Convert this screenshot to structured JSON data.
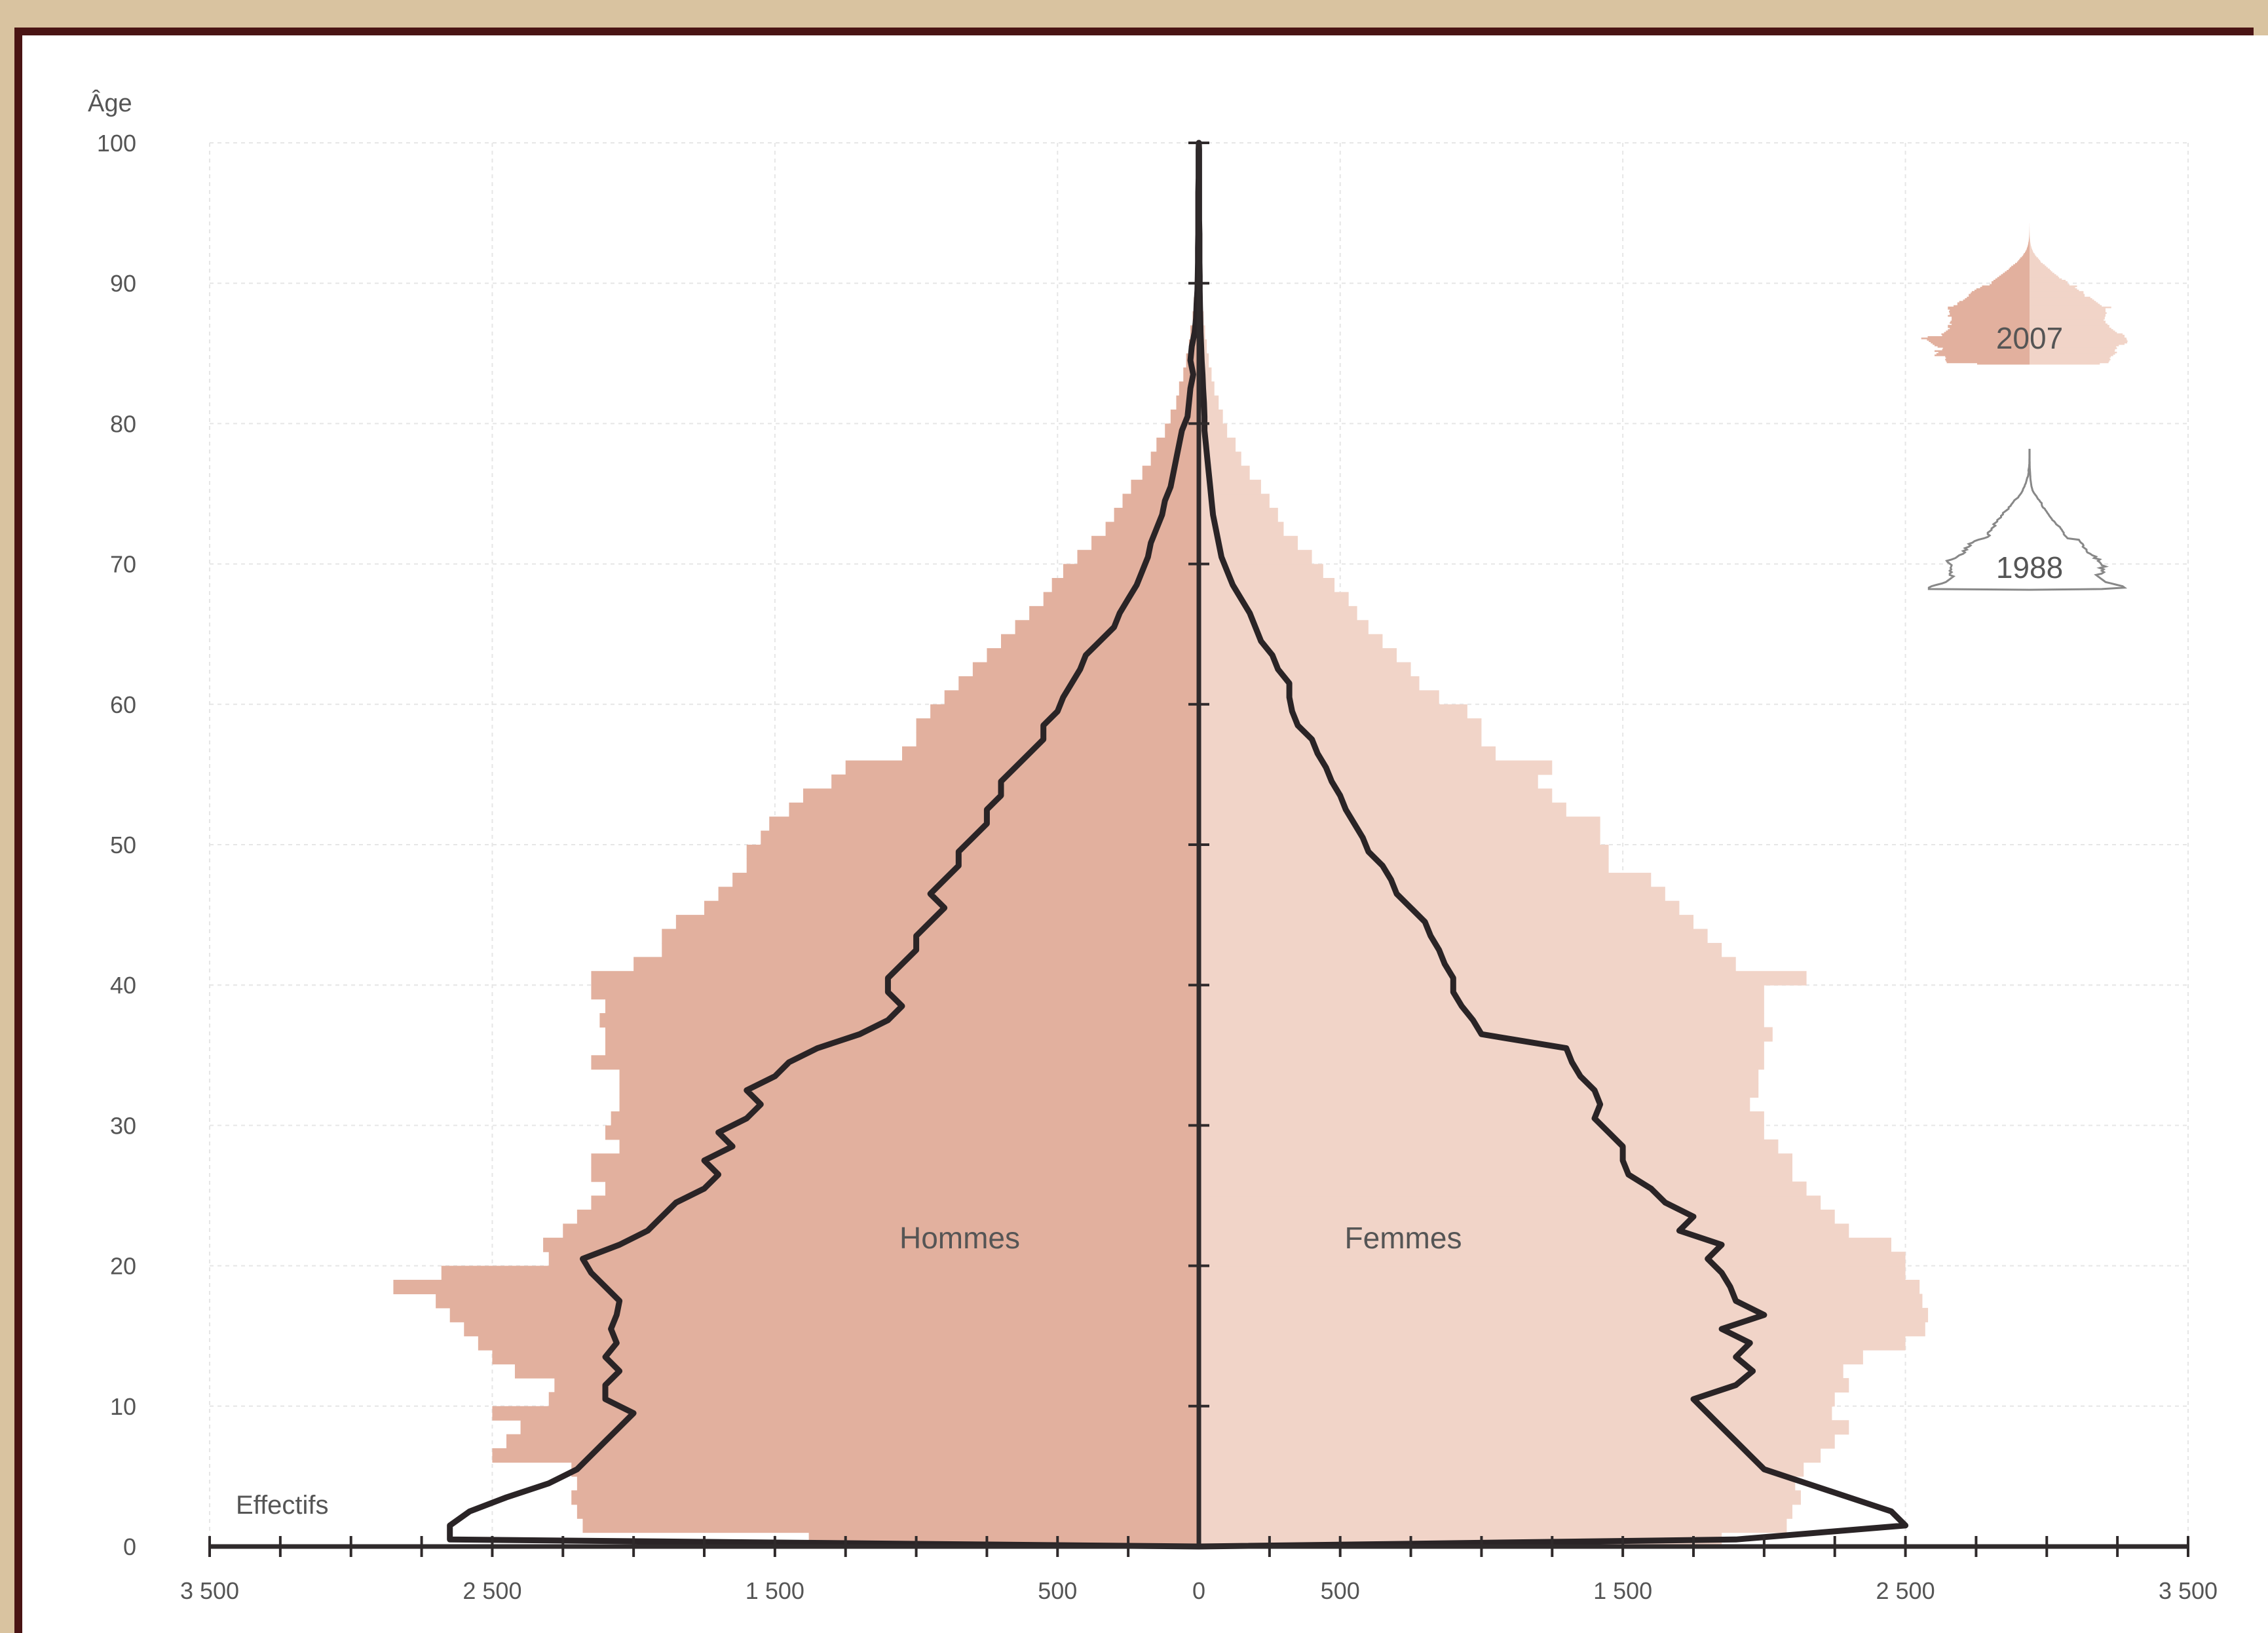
{
  "colors": {
    "men_fill": "#e2b09e",
    "women_fill": "#f1d4c8",
    "outline_1988": "#2a2426",
    "axis": "#2f2a2b",
    "grid": "#e6e6e6",
    "text": "#555555",
    "frame_bg": "#d9c3a0",
    "frame_border": "#4a1414"
  },
  "chart_data": {
    "type": "population-pyramid",
    "ylabel": "Âge",
    "xlabel": "Effectifs",
    "xlim": [
      -3500,
      3500
    ],
    "ylim": [
      0,
      100
    ],
    "x_ticks": [
      -3500,
      -2500,
      -1500,
      -500,
      0,
      500,
      1500,
      2500,
      3500
    ],
    "x_tick_labels": [
      "3 500",
      "2 500",
      "1 500",
      "500",
      "0",
      "500",
      "1 500",
      "2 500",
      "3 500"
    ],
    "y_ticks": [
      0,
      10,
      20,
      30,
      40,
      50,
      60,
      70,
      80,
      90,
      100
    ],
    "y_tick_labels": [
      "0",
      "10",
      "20",
      "30",
      "40",
      "50",
      "60",
      "70",
      "80",
      "90",
      "100"
    ],
    "side_labels": {
      "left": "Hommes",
      "right": "Femmes"
    },
    "grid": true,
    "legend": {
      "position": "top-right",
      "entries": [
        "2007",
        "1988"
      ]
    },
    "ages": [
      0,
      1,
      2,
      3,
      4,
      5,
      6,
      7,
      8,
      9,
      10,
      11,
      12,
      13,
      14,
      15,
      16,
      17,
      18,
      19,
      20,
      21,
      22,
      23,
      24,
      25,
      26,
      27,
      28,
      29,
      30,
      31,
      32,
      33,
      34,
      35,
      36,
      37,
      38,
      39,
      40,
      41,
      42,
      43,
      44,
      45,
      46,
      47,
      48,
      49,
      50,
      51,
      52,
      53,
      54,
      55,
      56,
      57,
      58,
      59,
      60,
      61,
      62,
      63,
      64,
      65,
      66,
      67,
      68,
      69,
      70,
      71,
      72,
      73,
      74,
      75,
      76,
      77,
      78,
      79,
      80,
      81,
      82,
      83,
      84,
      85,
      86,
      87,
      88,
      89,
      90,
      91,
      92,
      93,
      94,
      95,
      96,
      97,
      98,
      99
    ],
    "series": [
      {
        "name": "2007",
        "men": [
          1380,
          2180,
          2200,
          2220,
          2200,
          2220,
          2500,
          2450,
          2400,
          2500,
          2300,
          2280,
          2420,
          2500,
          2550,
          2600,
          2650,
          2700,
          2850,
          2680,
          2300,
          2320,
          2250,
          2200,
          2150,
          2100,
          2150,
          2150,
          2050,
          2100,
          2080,
          2050,
          2050,
          2050,
          2150,
          2100,
          2100,
          2120,
          2100,
          2150,
          2150,
          2000,
          1900,
          1900,
          1850,
          1750,
          1700,
          1650,
          1600,
          1600,
          1550,
          1520,
          1450,
          1400,
          1300,
          1250,
          1050,
          1000,
          1000,
          950,
          900,
          850,
          800,
          750,
          700,
          650,
          600,
          550,
          520,
          480,
          430,
          380,
          330,
          300,
          270,
          240,
          200,
          170,
          150,
          120,
          100,
          80,
          70,
          55,
          45,
          35,
          30,
          22,
          18,
          14,
          10,
          8,
          6,
          5,
          4,
          3,
          2,
          2,
          1,
          1
        ],
        "women": [
          1850,
          2080,
          2100,
          2130,
          2110,
          2140,
          2200,
          2250,
          2300,
          2240,
          2250,
          2300,
          2280,
          2350,
          2500,
          2570,
          2580,
          2560,
          2550,
          2500,
          2500,
          2450,
          2300,
          2250,
          2200,
          2150,
          2100,
          2100,
          2050,
          2000,
          2000,
          1950,
          1980,
          1980,
          2000,
          2000,
          2030,
          2000,
          2000,
          2000,
          2150,
          1900,
          1850,
          1800,
          1750,
          1700,
          1650,
          1600,
          1450,
          1450,
          1420,
          1420,
          1300,
          1250,
          1200,
          1250,
          1050,
          1000,
          1000,
          950,
          850,
          780,
          750,
          700,
          650,
          600,
          560,
          530,
          480,
          440,
          400,
          350,
          300,
          280,
          250,
          220,
          180,
          150,
          130,
          100,
          85,
          70,
          55,
          45,
          35,
          28,
          22,
          17,
          13,
          10,
          8,
          6,
          5,
          4,
          3,
          2,
          2,
          1,
          1,
          1
        ]
      },
      {
        "name": "1988",
        "men": [
          2650,
          2650,
          2580,
          2450,
          2300,
          2200,
          2150,
          2100,
          2050,
          2000,
          2100,
          2100,
          2050,
          2100,
          2060,
          2080,
          2060,
          2050,
          2100,
          2150,
          2180,
          2050,
          1950,
          1900,
          1850,
          1750,
          1700,
          1750,
          1650,
          1700,
          1600,
          1550,
          1600,
          1500,
          1450,
          1350,
          1200,
          1100,
          1050,
          1100,
          1100,
          1050,
          1000,
          1000,
          950,
          900,
          950,
          900,
          850,
          850,
          800,
          750,
          750,
          700,
          700,
          650,
          600,
          550,
          550,
          500,
          480,
          450,
          420,
          400,
          350,
          300,
          280,
          250,
          220,
          200,
          180,
          170,
          150,
          130,
          120,
          100,
          90,
          80,
          70,
          60,
          40,
          35,
          30,
          20,
          30,
          25,
          15,
          10,
          8,
          5,
          4,
          3,
          3,
          2,
          2,
          2,
          2,
          1,
          1,
          1
        ],
        "women": [
          1900,
          2500,
          2450,
          2300,
          2150,
          2000,
          1950,
          1900,
          1850,
          1800,
          1750,
          1900,
          1960,
          1900,
          1950,
          1850,
          2000,
          1900,
          1880,
          1850,
          1800,
          1850,
          1700,
          1750,
          1650,
          1600,
          1520,
          1500,
          1500,
          1450,
          1400,
          1420,
          1400,
          1350,
          1320,
          1300,
          1000,
          970,
          930,
          900,
          900,
          870,
          850,
          820,
          800,
          750,
          700,
          680,
          650,
          600,
          580,
          550,
          520,
          500,
          470,
          450,
          420,
          400,
          350,
          330,
          320,
          320,
          280,
          260,
          220,
          200,
          180,
          150,
          120,
          100,
          80,
          70,
          60,
          50,
          45,
          40,
          35,
          30,
          25,
          20,
          20,
          18,
          15,
          13,
          10,
          8,
          6,
          5,
          4,
          3,
          3,
          2,
          2,
          2,
          1,
          1,
          1,
          1,
          1,
          1
        ]
      }
    ]
  }
}
